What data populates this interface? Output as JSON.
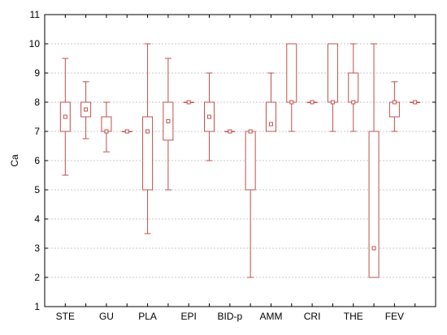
{
  "chart_data": {
    "type": "box",
    "ylabel": "Ca",
    "ylim": [
      1,
      11
    ],
    "yticks": [
      1,
      2,
      3,
      4,
      5,
      6,
      7,
      8,
      9,
      10,
      11
    ],
    "grid": true,
    "colors": {
      "box": "#c0504d",
      "grid": "#c8c8c8",
      "axis": "#000000"
    },
    "boxes": [
      {
        "position": 1,
        "category": "STE",
        "label": "STE",
        "min": 5.5,
        "q1": 7.0,
        "median": 7.5,
        "q3": 8.0,
        "max": 9.5
      },
      {
        "position": 2,
        "category": "",
        "label": "",
        "min": 6.75,
        "q1": 7.5,
        "median": 7.75,
        "q3": 8.0,
        "max": 8.7
      },
      {
        "position": 3,
        "category": "GU",
        "label": "GU",
        "min": 6.3,
        "q1": 7.0,
        "median": 7.0,
        "q3": 7.5,
        "max": 8.0
      },
      {
        "position": 4,
        "category": "",
        "label": "",
        "min": 7.0,
        "q1": 7.0,
        "median": 7.0,
        "q3": 7.0,
        "max": 7.0
      },
      {
        "position": 5,
        "category": "PLA",
        "label": "PLA",
        "min": 3.5,
        "q1": 5.0,
        "median": 7.0,
        "q3": 7.5,
        "max": 10.0
      },
      {
        "position": 6,
        "category": "",
        "label": "",
        "min": 5.0,
        "q1": 6.7,
        "median": 7.35,
        "q3": 8.0,
        "max": 9.5
      },
      {
        "position": 7,
        "category": "EPI",
        "label": "EPI",
        "min": 8.0,
        "q1": 8.0,
        "median": 8.0,
        "q3": 8.0,
        "max": 8.0
      },
      {
        "position": 8,
        "category": "",
        "label": "",
        "min": 6.0,
        "q1": 7.0,
        "median": 7.5,
        "q3": 8.0,
        "max": 9.0
      },
      {
        "position": 9,
        "category": "BID-p",
        "label": "BID-p",
        "min": 7.0,
        "q1": 7.0,
        "median": 7.0,
        "q3": 7.0,
        "max": 7.0
      },
      {
        "position": 10,
        "category": "",
        "label": "",
        "min": 2.0,
        "q1": 5.0,
        "median": 7.0,
        "q3": 7.0,
        "max": 7.0
      },
      {
        "position": 11,
        "category": "AMM",
        "label": "AMM",
        "min": 7.0,
        "q1": 7.0,
        "median": 7.25,
        "q3": 8.0,
        "max": 9.0
      },
      {
        "position": 12,
        "category": "",
        "label": "",
        "min": 7.0,
        "q1": 8.0,
        "median": 8.0,
        "q3": 10.0,
        "max": 10.0
      },
      {
        "position": 13,
        "category": "CRI",
        "label": "CRI",
        "min": 8.0,
        "q1": 8.0,
        "median": 8.0,
        "q3": 8.0,
        "max": 8.0
      },
      {
        "position": 14,
        "category": "",
        "label": "",
        "min": 7.0,
        "q1": 8.0,
        "median": 8.0,
        "q3": 10.0,
        "max": 10.0
      },
      {
        "position": 15,
        "category": "THE",
        "label": "THE",
        "min": 7.0,
        "q1": 8.0,
        "median": 8.0,
        "q3": 9.0,
        "max": 10.0
      },
      {
        "position": 16,
        "category": "",
        "label": "",
        "min": 2.0,
        "q1": 2.0,
        "median": 3.0,
        "q3": 7.0,
        "max": 10.0
      },
      {
        "position": 17,
        "category": "FEV",
        "label": "FEV",
        "min": 7.0,
        "q1": 7.5,
        "median": 8.0,
        "q3": 8.0,
        "max": 8.7
      },
      {
        "position": 18,
        "category": "",
        "label": "",
        "min": 8.0,
        "q1": 8.0,
        "median": 8.0,
        "q3": 8.0,
        "max": 8.0
      }
    ]
  }
}
